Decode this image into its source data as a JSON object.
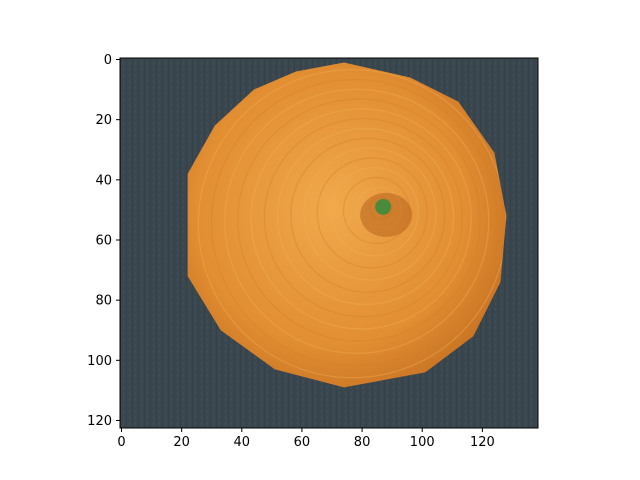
{
  "chart_data": {
    "type": "heatmap",
    "title": "",
    "xlabel": "",
    "ylabel": "",
    "image_width": 139,
    "image_height": 123,
    "xlim": [
      -0.5,
      138.5
    ],
    "ylim": [
      122.5,
      -0.5
    ],
    "x_ticks": [
      0,
      20,
      40,
      60,
      80,
      100,
      120
    ],
    "y_ticks": [
      0,
      20,
      40,
      60,
      80,
      100,
      120
    ],
    "x_tick_labels": [
      "0",
      "20",
      "40",
      "60",
      "80",
      "100",
      "120"
    ],
    "y_tick_labels": [
      "0",
      "20",
      "40",
      "60",
      "80",
      "100",
      "120"
    ],
    "grid": false,
    "colors": {
      "background": "#3b474f",
      "fruit": "#e28e32",
      "fruit_light": "#f0a94c",
      "fruit_dark": "#c97424",
      "stem": "#4a8a3a",
      "navel": "#b8641e"
    },
    "fruit_outline": [
      [
        74,
        1
      ],
      [
        96,
        6
      ],
      [
        112,
        14
      ],
      [
        124,
        31
      ],
      [
        128,
        52
      ],
      [
        126,
        74
      ],
      [
        117,
        92
      ],
      [
        101,
        104
      ],
      [
        74,
        109
      ],
      [
        51,
        103
      ],
      [
        33,
        90
      ],
      [
        22,
        72
      ],
      [
        22,
        38
      ],
      [
        31,
        22
      ],
      [
        44,
        10
      ],
      [
        58,
        4
      ]
    ],
    "stem_center": [
      87,
      49
    ]
  }
}
